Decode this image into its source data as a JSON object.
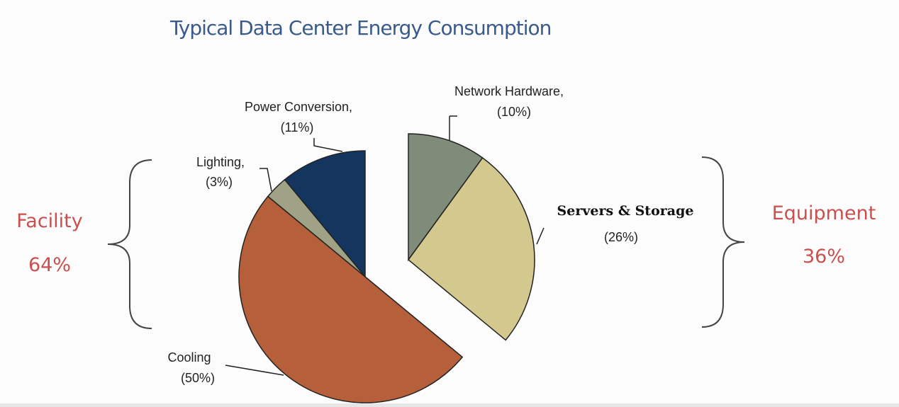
{
  "chart_data": {
    "type": "pie",
    "title": "Typical Data Center Energy Consumption",
    "slices": [
      {
        "label": "Power Conversion,",
        "pct_label": "(11%)",
        "value": 11,
        "group": "facility",
        "color": "#14365e"
      },
      {
        "label": "Lighting,",
        "pct_label": "(3%)",
        "value": 3,
        "group": "facility",
        "color": "#9fa285"
      },
      {
        "label": "Cooling",
        "pct_label": "(50%)",
        "value": 50,
        "group": "facility",
        "color": "#b5603a"
      },
      {
        "label": "Network Hardware,",
        "pct_label": "(10%)",
        "value": 10,
        "group": "equipment",
        "color": "#7f8c7a"
      },
      {
        "label": "Servers & Storage",
        "pct_label": "(26%)",
        "value": 26,
        "group": "equipment",
        "color": "#d3c98e"
      }
    ],
    "groups": {
      "facility": {
        "label": "Facility",
        "value_label": "64%",
        "color": "#c9504f"
      },
      "equipment": {
        "label": "Equipment",
        "value_label": "36%",
        "color": "#c9504f"
      }
    }
  }
}
